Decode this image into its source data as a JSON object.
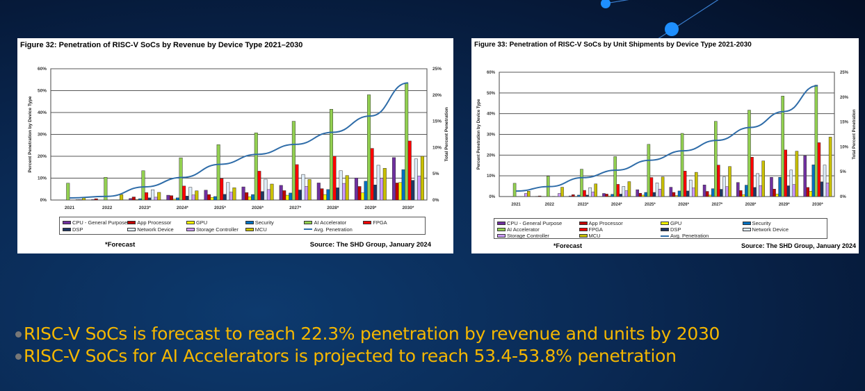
{
  "colors": {
    "background": "#0a2a55",
    "bullet_text": "#f5b700",
    "line": "#2e6ca8"
  },
  "bullets": [
    "RISC-V SoCs is forecast to reach 22.3% penetration by revenue and units by 2030",
    "RISC-V SoCs for AI Accelerators is projected to reach 53.4-53.8% penetration"
  ],
  "chart_data": [
    {
      "type": "bar",
      "title": "Figure 32: Penetration of RISC-V SoCs by Revenue by Device Type 2021–2030",
      "ylabel": "Percent Penetration by Device Type",
      "y2label": "Total Percent Penetration",
      "ylim": [
        0,
        60
      ],
      "y2lim": [
        0,
        25
      ],
      "yticks": [
        "0%",
        "10%",
        "20%",
        "30%",
        "40%",
        "50%",
        "60%"
      ],
      "y2ticks": [
        "0%",
        "5%",
        "10%",
        "15%",
        "20%",
        "25%"
      ],
      "grid": true,
      "legend": "bottom",
      "footnote": "*Forecast",
      "source": "Source: The SHD Group, January 2024",
      "categories": [
        "2021",
        "2022",
        "2023*",
        "2024*",
        "2025*",
        "2026*",
        "2027*",
        "2028*",
        "2029*",
        "2030*"
      ],
      "series": [
        {
          "name": "CPU - General Purpose",
          "color": "#7030a0",
          "values": [
            0,
            0.2,
            0.7,
            2.2,
            4.5,
            6.0,
            6.7,
            7.8,
            10.1,
            19.4
          ]
        },
        {
          "name": "App Processor",
          "color": "#c00000",
          "values": [
            0,
            0.6,
            1.4,
            2.0,
            2.5,
            3.4,
            4.3,
            5.2,
            6.2,
            7.8
          ]
        },
        {
          "name": "GPU",
          "color": "#ffff00",
          "values": [
            0,
            0,
            0.2,
            0.4,
            1.2,
            1.5,
            2.2,
            2.5,
            3.3,
            8.0
          ]
        },
        {
          "name": "Security",
          "color": "#0070c0",
          "values": [
            0,
            0,
            0.6,
            1.0,
            1.6,
            2.5,
            3.2,
            4.8,
            8.6,
            13.9
          ]
        },
        {
          "name": "AI Accelerator",
          "color": "#92d050",
          "values": [
            7.7,
            10.4,
            13.4,
            19.3,
            25.3,
            30.7,
            36.0,
            41.5,
            48.1,
            53.4
          ]
        },
        {
          "name": "FPGA",
          "color": "#ff0000",
          "values": [
            0,
            0,
            3.4,
            6.4,
            9.8,
            13.2,
            16.2,
            20.0,
            23.6,
            27.0
          ]
        },
        {
          "name": "DSP",
          "color": "#1f3864",
          "values": [
            0,
            0.1,
            1.0,
            1.8,
            2.6,
            3.9,
            4.6,
            5.6,
            6.9,
            9.0
          ]
        },
        {
          "name": "Network Device",
          "color": "#ddebf7",
          "values": [
            0.2,
            0.1,
            4.7,
            5.8,
            8.0,
            9.5,
            11.7,
            13.4,
            15.9,
            18.8
          ]
        },
        {
          "name": "Storage Controller",
          "color": "#cc99ff",
          "values": [
            0.2,
            0.1,
            1.3,
            2.3,
            3.6,
            4.8,
            6.2,
            7.6,
            10.0,
            11.0
          ]
        },
        {
          "name": "MCU",
          "color": "#c9c000",
          "values": [
            1.2,
            2.5,
            3.5,
            4.2,
            5.6,
            7.3,
            9.4,
            11.2,
            14.5,
            20.0
          ]
        }
      ],
      "line": {
        "name": "Avg. Penetration",
        "axis": "right",
        "values": [
          0.4,
          0.7,
          2.5,
          4.3,
          6.8,
          8.7,
          10.6,
          12.9,
          16.0,
          22.3
        ]
      }
    },
    {
      "type": "bar",
      "title": "Figure 33: Penetration of RISC-V SoCs by Unit Shipments by Device Type 2021-2030",
      "ylabel": "Percent Penetration by Device Type",
      "y2label": "Total Percent Penetration",
      "ylim": [
        0,
        60
      ],
      "y2lim": [
        0,
        25
      ],
      "yticks": [
        "0%",
        "10%",
        "20%",
        "30%",
        "40%",
        "50%",
        "60%"
      ],
      "y2ticks": [
        "0%",
        "5%",
        "10%",
        "15%",
        "20%",
        "25%"
      ],
      "grid": true,
      "legend": "bottom",
      "footnote": "*Forecast",
      "source": "Source: The SHD Group, January 2024",
      "categories": [
        "2021",
        "2022",
        "2023*",
        "2024*",
        "2025*",
        "2026*",
        "2027*",
        "2028*",
        "2029*",
        "2030*"
      ],
      "series": [
        {
          "name": "CPU - General Purpose",
          "color": "#7030a0",
          "values": [
            0,
            0.1,
            0.3,
            1.5,
            3.3,
            4.5,
            5.6,
            6.8,
            9.3,
            19.7
          ]
        },
        {
          "name": "App Processor",
          "color": "#c00000",
          "values": [
            0,
            0.3,
            0.9,
            1.2,
            1.6,
            2.0,
            2.5,
            2.9,
            3.6,
            4.4
          ]
        },
        {
          "name": "GPU",
          "color": "#ffff00",
          "values": [
            0,
            0,
            0.1,
            0.3,
            0.7,
            0.5,
            0.7,
            0.9,
            1.2,
            2.6
          ]
        },
        {
          "name": "Security",
          "color": "#0070c0",
          "values": [
            0,
            0,
            0.7,
            1.1,
            2.0,
            2.7,
            3.8,
            5.5,
            9.3,
            15.3
          ]
        },
        {
          "name": "AI Accelerator",
          "color": "#92d050",
          "values": [
            6.4,
            9.8,
            13.2,
            19.3,
            25.2,
            30.5,
            36.3,
            41.7,
            48.5,
            53.8
          ]
        },
        {
          "name": "FPGA",
          "color": "#ff0000",
          "values": [
            0,
            0,
            3.0,
            5.9,
            9.2,
            12.3,
            15.2,
            19.0,
            22.5,
            26.0
          ]
        },
        {
          "name": "DSP",
          "color": "#1f3864",
          "values": [
            0,
            0.1,
            0.7,
            1.2,
            2.0,
            2.7,
            3.5,
            4.4,
            5.2,
            7.1
          ]
        },
        {
          "name": "Network Device",
          "color": "#ddebf7",
          "values": [
            0,
            0,
            4.3,
            4.9,
            6.6,
            8.0,
            9.5,
            11.1,
            12.8,
            15.2
          ]
        },
        {
          "name": "Storage Controller",
          "color": "#cc99ff",
          "values": [
            1.5,
            1.5,
            2.2,
            2.8,
            3.6,
            4.2,
            4.8,
            5.3,
            5.8,
            6.6
          ]
        },
        {
          "name": "MCU",
          "color": "#c9c000",
          "values": [
            2.6,
            4.5,
            6.1,
            7.2,
            9.5,
            11.7,
            14.5,
            17.2,
            21.9,
            28.7
          ]
        }
      ],
      "line": {
        "name": "Avg. Penetration",
        "axis": "right",
        "values": [
          1.1,
          2.0,
          3.8,
          5.3,
          7.3,
          9.2,
          11.3,
          13.9,
          17.1,
          22.3
        ]
      }
    }
  ]
}
